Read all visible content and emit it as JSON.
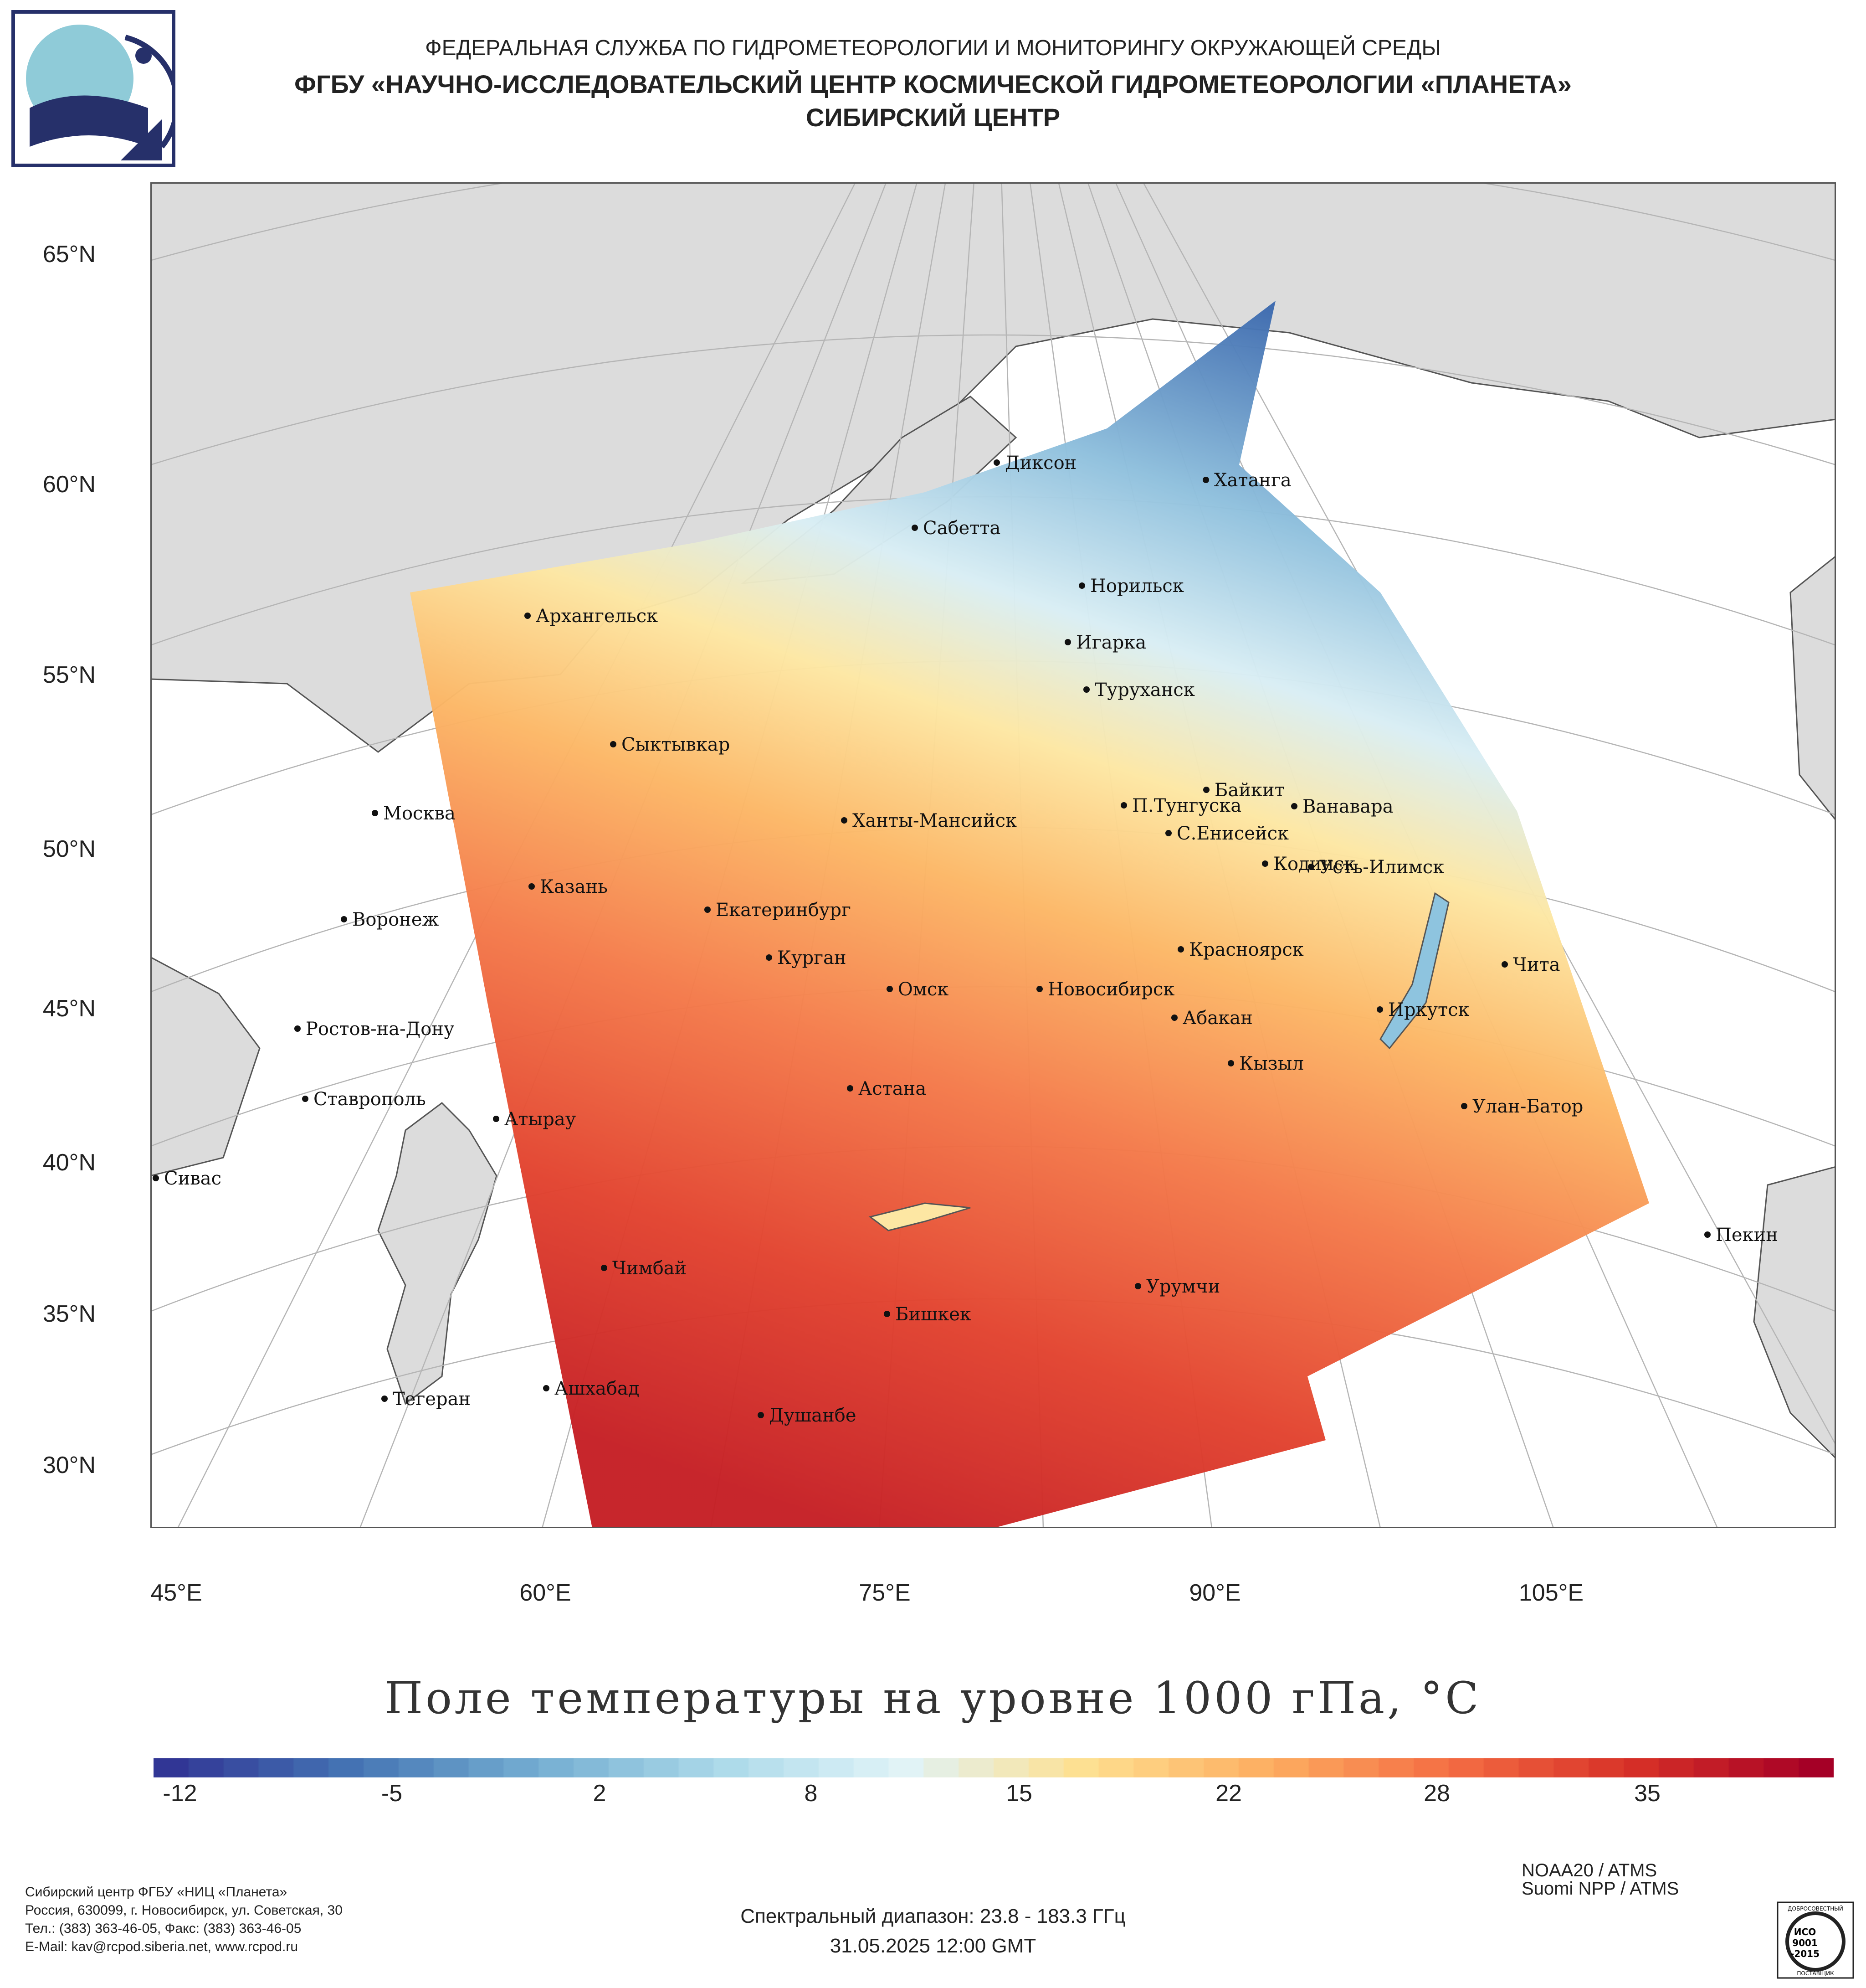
{
  "header": {
    "line1": "ФЕДЕРАЛЬНАЯ СЛУЖБА ПО ГИДРОМЕТЕОРОЛОГИИ И МОНИТОРИНГУ ОКРУЖАЮЩЕЙ СРЕДЫ",
    "line2": "ФГБУ «НАУЧНО-ИССЛЕДОВАТЕЛЬСКИЙ ЦЕНТР КОСМИЧЕСКОЙ ГИДРОМЕТЕОРОЛОГИИ «ПЛАНЕТА»",
    "line3": "СИБИРСКИЙ ЦЕНТР"
  },
  "map": {
    "lat_labels": [
      "65°N",
      "60°N",
      "55°N",
      "50°N",
      "45°N",
      "40°N",
      "35°N",
      "30°N"
    ],
    "lon_labels": [
      "45°E",
      "60°E",
      "75°E",
      "90°E",
      "105°E"
    ],
    "cities": [
      {
        "name": "Диксон"
      },
      {
        "name": "Хатанга"
      },
      {
        "name": "Сабетта"
      },
      {
        "name": "Норильск"
      },
      {
        "name": "Архангельск"
      },
      {
        "name": "Игарка"
      },
      {
        "name": "Туруханск"
      },
      {
        "name": "Сыктывкар"
      },
      {
        "name": "Байкит"
      },
      {
        "name": "Москва"
      },
      {
        "name": "П.Тунгуска"
      },
      {
        "name": "Ванавара"
      },
      {
        "name": "Ханты-Мансийск"
      },
      {
        "name": "С.Енисейск"
      },
      {
        "name": "Кодинск"
      },
      {
        "name": "Усть-Илимск"
      },
      {
        "name": "Казань"
      },
      {
        "name": "Екатеринбург"
      },
      {
        "name": "Воронеж"
      },
      {
        "name": "Красноярск"
      },
      {
        "name": "Курган"
      },
      {
        "name": "Чита"
      },
      {
        "name": "Омск"
      },
      {
        "name": "Новосибирск"
      },
      {
        "name": "Иркутск"
      },
      {
        "name": "Ростов-на-Дону"
      },
      {
        "name": "Абакан"
      },
      {
        "name": "Кызыл"
      },
      {
        "name": "Ставрополь"
      },
      {
        "name": "Астана"
      },
      {
        "name": "Улан-Батор"
      },
      {
        "name": "Атырау"
      },
      {
        "name": "Сивас"
      },
      {
        "name": "Пекин"
      },
      {
        "name": "Чимбай"
      },
      {
        "name": "Урумчи"
      },
      {
        "name": "Бишкек"
      },
      {
        "name": "Ашхабад"
      },
      {
        "name": "Тегеран"
      },
      {
        "name": "Душанбе"
      }
    ]
  },
  "title": "Поле температуры на уровне 1000 гПа, °С",
  "colorbar": {
    "ticks": [
      "-12",
      "-5",
      "2",
      "8",
      "15",
      "22",
      "28",
      "35"
    ],
    "colors": [
      "#313695",
      "#4575b4",
      "#74add1",
      "#abd9e9",
      "#e0f3f8",
      "#fee090",
      "#fdae61",
      "#f46d43",
      "#d73027",
      "#a50026"
    ]
  },
  "footer": {
    "org_lines": [
      "Сибирский центр ФГБУ «НИЦ «Планета»",
      "Россия, 630099, г. Новосибирск, ул. Советская, 30",
      "Тел.: (383) 363-46-05, Факс: (383) 363-46-05",
      "E-Mail: kav@rcpod.siberia.net, www.rcpod.ru"
    ],
    "spectral": "Спектральный диапазон: 23.8 - 183.3 ГГц",
    "datetime": "31.05.2025 12:00 GMT",
    "sat1": "NOAA20 / ATMS",
    "sat2": "Suomi NPP / ATMS",
    "cert_lines": [
      "ДОБРОСОВЕСТНЫЙ",
      "ИСО",
      "9001",
      "-2015",
      "ПОСТАВЩИК"
    ]
  }
}
